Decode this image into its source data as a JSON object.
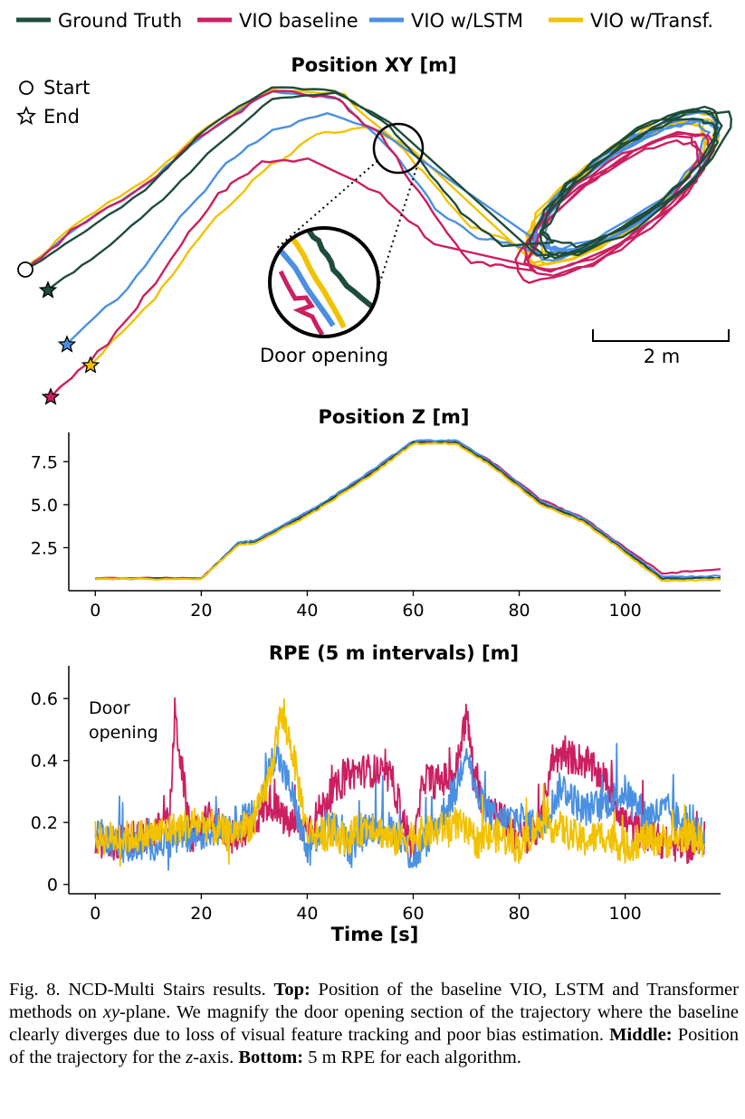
{
  "colors": {
    "ground_truth": "#1e4d3a",
    "vio_baseline": "#cc1f62",
    "vio_lstm": "#4a90e2",
    "vio_transf": "#f2c200"
  },
  "legend": {
    "ground_truth": "Ground Truth",
    "vio_baseline": "VIO baseline",
    "vio_lstm": "VIO w/LSTM",
    "vio_transf": "VIO w/Transf."
  },
  "chart_data": [
    {
      "type": "line",
      "title": "Position XY [m]",
      "markers": {
        "start": "Start",
        "end": "End"
      },
      "zoom_label": "Door opening",
      "scale_bar": "2 m",
      "series": [
        {
          "name": "Ground Truth"
        },
        {
          "name": "VIO baseline"
        },
        {
          "name": "VIO w/LSTM"
        },
        {
          "name": "VIO w/Transf."
        }
      ]
    },
    {
      "type": "line",
      "title": "Position Z [m]",
      "xlim": [
        -5,
        118
      ],
      "ylim": [
        0,
        9.2
      ],
      "xticks": [
        "0",
        "20",
        "40",
        "60",
        "80",
        "100"
      ],
      "yticks": [
        "2.5",
        "5.0",
        "7.5"
      ],
      "series": [
        {
          "name": "Ground Truth",
          "x": [
            0,
            20,
            27,
            30,
            38,
            43,
            52,
            60,
            68,
            75,
            84,
            92,
            100,
            107,
            118
          ],
          "y": [
            0.7,
            0.7,
            2.7,
            2.8,
            4.1,
            5.0,
            6.8,
            8.6,
            8.6,
            7.3,
            5.1,
            4.1,
            2.3,
            0.7,
            0.75
          ]
        },
        {
          "name": "VIO baseline",
          "x": [
            0,
            20,
            27,
            30,
            38,
            43,
            52,
            60,
            68,
            75,
            84,
            92,
            100,
            107,
            118
          ],
          "y": [
            0.72,
            0.72,
            2.75,
            2.85,
            4.2,
            5.05,
            6.9,
            8.65,
            8.7,
            7.45,
            5.3,
            4.25,
            2.5,
            1.0,
            1.25
          ]
        },
        {
          "name": "VIO w/LSTM",
          "x": [
            0,
            20,
            27,
            30,
            38,
            43,
            52,
            60,
            68,
            75,
            84,
            92,
            100,
            107,
            118
          ],
          "y": [
            0.7,
            0.7,
            2.8,
            2.9,
            4.25,
            5.1,
            6.95,
            8.7,
            8.75,
            7.4,
            5.2,
            4.2,
            2.4,
            0.8,
            0.85
          ]
        },
        {
          "name": "VIO w/Transf.",
          "x": [
            0,
            20,
            27,
            30,
            38,
            43,
            52,
            60,
            68,
            75,
            84,
            92,
            100,
            107,
            118
          ],
          "y": [
            0.68,
            0.68,
            2.65,
            2.75,
            4.0,
            4.9,
            6.7,
            8.55,
            8.55,
            7.2,
            5.0,
            4.0,
            2.2,
            0.55,
            0.65
          ]
        }
      ]
    },
    {
      "type": "line",
      "title": "RPE (5 m intervals) [m]",
      "xlabel": "Time [s]",
      "xlim": [
        -5,
        118
      ],
      "ylim": [
        -0.03,
        0.7
      ],
      "xticks": [
        "0",
        "20",
        "40",
        "60",
        "80",
        "100"
      ],
      "yticks": [
        "0",
        "0.2",
        "0.4",
        "0.6"
      ],
      "annotation": [
        "Door",
        "opening"
      ],
      "series": [
        {
          "name": "VIO baseline",
          "x": [
            0,
            5,
            10,
            14,
            15,
            18,
            22,
            26,
            30,
            33,
            36,
            40,
            44,
            48,
            52,
            56,
            60,
            62,
            64,
            66,
            68,
            70,
            72,
            76,
            80,
            84,
            86,
            88,
            92,
            96,
            100,
            104,
            108,
            112,
            115
          ],
          "y": [
            0.12,
            0.14,
            0.16,
            0.2,
            0.55,
            0.15,
            0.22,
            0.15,
            0.2,
            0.27,
            0.2,
            0.18,
            0.28,
            0.36,
            0.37,
            0.34,
            0.1,
            0.35,
            0.33,
            0.34,
            0.36,
            0.55,
            0.3,
            0.23,
            0.15,
            0.18,
            0.4,
            0.42,
            0.4,
            0.34,
            0.2,
            0.16,
            0.13,
            0.12,
            0.15
          ]
        },
        {
          "name": "VIO w/LSTM",
          "x": [
            0,
            5,
            10,
            15,
            20,
            25,
            30,
            34,
            37,
            40,
            44,
            48,
            52,
            56,
            60,
            64,
            68,
            70,
            72,
            76,
            80,
            84,
            88,
            92,
            96,
            100,
            104,
            108,
            112,
            115
          ],
          "y": [
            0.18,
            0.12,
            0.13,
            0.14,
            0.16,
            0.19,
            0.22,
            0.43,
            0.3,
            0.1,
            0.2,
            0.12,
            0.19,
            0.18,
            0.08,
            0.18,
            0.3,
            0.45,
            0.28,
            0.2,
            0.22,
            0.18,
            0.32,
            0.24,
            0.26,
            0.3,
            0.22,
            0.24,
            0.18,
            0.16
          ]
        },
        {
          "name": "VIO w/Transf.",
          "x": [
            0,
            5,
            10,
            15,
            20,
            25,
            30,
            33,
            35,
            37,
            40,
            44,
            48,
            52,
            56,
            60,
            64,
            68,
            72,
            76,
            80,
            84,
            88,
            92,
            96,
            100,
            104,
            108,
            112,
            115
          ],
          "y": [
            0.15,
            0.15,
            0.16,
            0.18,
            0.2,
            0.16,
            0.2,
            0.35,
            0.55,
            0.45,
            0.17,
            0.16,
            0.15,
            0.2,
            0.14,
            0.16,
            0.17,
            0.2,
            0.14,
            0.16,
            0.12,
            0.2,
            0.18,
            0.14,
            0.16,
            0.12,
            0.15,
            0.14,
            0.16,
            0.14
          ]
        }
      ]
    }
  ],
  "caption": {
    "fig": "Fig. 8.",
    "intro": "NCD-Multi Stairs results.",
    "top_label": "Top:",
    "top_text_1": "Position of the baseline VIO, LSTM and Transformer methods on",
    "top_math": "xy",
    "top_text_2": "-plane. We magnify the door opening section of the trajectory where the baseline clearly diverges due to loss of visual feature tracking and poor bias estimation.",
    "middle_label": "Middle:",
    "middle_text_1": "Position of the trajectory for the",
    "middle_math": "z",
    "middle_text_2": "-axis.",
    "bottom_label": "Bottom:",
    "bottom_text": "5 m RPE for each algorithm."
  }
}
